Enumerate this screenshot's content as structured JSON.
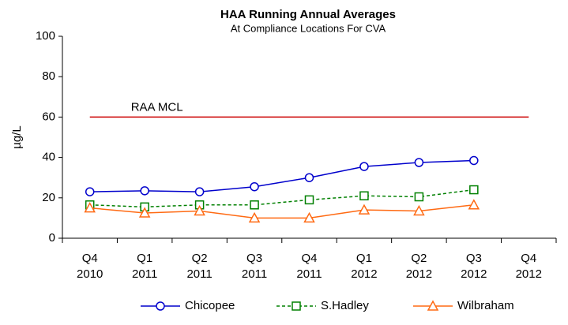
{
  "chart_data": {
    "type": "line",
    "title": "HAA Running Annual Averages",
    "subtitle": "At Compliance Locations For CVA",
    "ylabel": "µg/L",
    "categories": [
      "Q4 2010",
      "Q1 2011",
      "Q2 2011",
      "Q3 2011",
      "Q4 2011",
      "Q1 2012",
      "Q2 2012",
      "Q3 2012",
      "Q4 2012"
    ],
    "series": [
      {
        "name": "Chicopee",
        "color": "#0000cc",
        "marker": "circle",
        "dash": false,
        "values": [
          23,
          23.5,
          23,
          25.5,
          30,
          35.5,
          37.5,
          38.5,
          null
        ]
      },
      {
        "name": "S.Hadley",
        "color": "#008000",
        "marker": "square",
        "dash": true,
        "values": [
          16.5,
          15.5,
          16.5,
          16.5,
          19,
          21,
          20.5,
          24,
          null
        ]
      },
      {
        "name": "Wilbraham",
        "color": "#ff6a13",
        "marker": "triangle",
        "dash": false,
        "values": [
          15,
          12.5,
          13.5,
          10,
          10,
          14,
          13.5,
          16.5,
          null
        ]
      }
    ],
    "reference_line": {
      "label": "RAA MCL",
      "value": 60,
      "color": "#cc0000"
    },
    "ylim": [
      0,
      100
    ],
    "yticks": [
      0,
      20,
      40,
      60,
      80,
      100
    ],
    "grid": false,
    "legend": "bottom"
  }
}
